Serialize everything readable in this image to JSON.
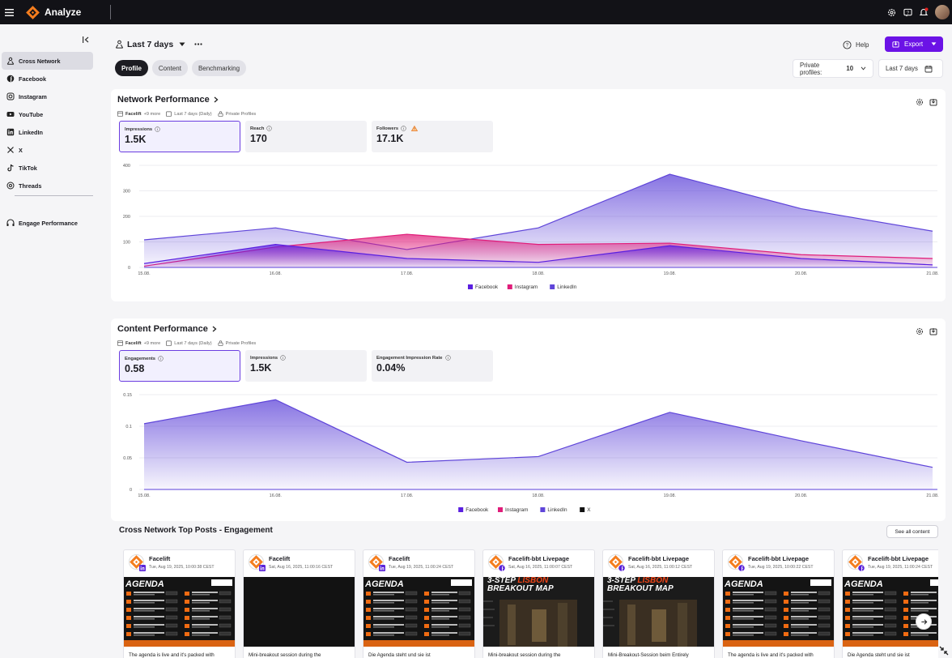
{
  "topbar": {
    "app_title": "Analyze"
  },
  "sidebar": {
    "items": [
      {
        "label": "Cross Network",
        "icon": "network-icon",
        "active": true
      },
      {
        "label": "Facebook",
        "icon": "facebook-icon"
      },
      {
        "label": "Instagram",
        "icon": "instagram-icon"
      },
      {
        "label": "YouTube",
        "icon": "youtube-icon"
      },
      {
        "label": "LinkedIn",
        "icon": "linkedin-icon"
      },
      {
        "label": "X",
        "icon": "x-icon"
      },
      {
        "label": "TikTok",
        "icon": "tiktok-icon"
      },
      {
        "label": "Threads",
        "icon": "threads-icon"
      }
    ],
    "secondary": [
      {
        "label": "Engage Performance",
        "icon": "engage-icon"
      }
    ]
  },
  "header": {
    "period": "Last 7 days",
    "help_label": "Help",
    "export_label": "Export"
  },
  "tabs": [
    {
      "label": "Profile",
      "active": true
    },
    {
      "label": "Content"
    },
    {
      "label": "Benchmarking"
    }
  ],
  "filters": {
    "private_profiles_label": "Private profiles:",
    "private_profiles_count": "10",
    "date_range": "Last 7 days"
  },
  "network_performance": {
    "title": "Network Performance",
    "meta": {
      "profile": "Facelift",
      "more": "+9 more",
      "period": "Last 7 days  (Daily)",
      "privacy": "Private Profiles"
    },
    "kpis": [
      {
        "label": "Impressions",
        "value": "1.5K",
        "active": true
      },
      {
        "label": "Reach",
        "value": "170"
      },
      {
        "label": "Followers",
        "value": "17.1K",
        "warning": true
      }
    ]
  },
  "content_performance": {
    "title": "Content Performance",
    "meta": {
      "profile": "Facelift",
      "more": "+9 more",
      "period": "Last 7 days  (Daily)",
      "privacy": "Private Profiles"
    },
    "kpis": [
      {
        "label": "Engagements",
        "value": "0.58",
        "active": true
      },
      {
        "label": "Impressions",
        "value": "1.5K"
      },
      {
        "label": "Engagement Impression Rate",
        "value": "0.04%"
      }
    ]
  },
  "chart_data": [
    {
      "type": "area",
      "categories": [
        "15.08.",
        "16.08.",
        "17.08.",
        "18.08.",
        "19.08.",
        "20.08.",
        "21.08."
      ],
      "ylim": [
        0,
        400
      ],
      "yticks": [
        0,
        100,
        200,
        300,
        400
      ],
      "series": [
        {
          "name": "Facebook",
          "color": "#5a1fe0",
          "values": [
            15,
            90,
            35,
            20,
            85,
            35,
            10
          ]
        },
        {
          "name": "Instagram",
          "color": "#e01d7a",
          "values": [
            5,
            80,
            130,
            90,
            95,
            50,
            35
          ]
        },
        {
          "name": "LinkedIn",
          "color": "#5f45d9",
          "values": [
            108,
            155,
            70,
            155,
            365,
            230,
            142
          ]
        }
      ]
    },
    {
      "type": "area",
      "categories": [
        "15.08.",
        "16.08.",
        "17.08.",
        "18.08.",
        "19.08.",
        "20.08.",
        "21.08."
      ],
      "ylim": [
        0,
        0.15
      ],
      "yticks": [
        "0",
        "0.05",
        "0.1",
        "0.15"
      ],
      "series": [
        {
          "name": "Facebook",
          "color": "#5a1fe0",
          "values": [
            0,
            0,
            0,
            0,
            0,
            0,
            0
          ]
        },
        {
          "name": "Instagram",
          "color": "#e01d7a",
          "values": [
            0,
            0,
            0,
            0,
            0,
            0,
            0
          ]
        },
        {
          "name": "LinkedIn",
          "color": "#5f45d9",
          "values": [
            0.104,
            0.142,
            0.043,
            0.052,
            0.122,
            0.077,
            0.035
          ]
        },
        {
          "name": "X",
          "color": "#111111",
          "values": [
            0,
            0,
            0,
            0,
            0,
            0,
            0
          ]
        }
      ]
    }
  ],
  "top_posts": {
    "title": "Cross Network Top Posts - Engagement",
    "see_all": "See all content",
    "posts": [
      {
        "name": "Facelift",
        "date": "Tue, Aug 19, 2025, 10:00:38 CEST",
        "network": "linkedin",
        "image": "agenda",
        "text": "The agenda is live and it's packed with"
      },
      {
        "name": "Facelift",
        "date": "Sat, Aug 16, 2025, 11:00:16 CEST",
        "network": "linkedin",
        "image": "black",
        "text": "Mini-breakout session during the"
      },
      {
        "name": "Facelift",
        "date": "Tue, Aug 19, 2025, 11:00:24 CEST",
        "network": "linkedin",
        "image": "agenda",
        "text": "Die Agenda steht und sie ist"
      },
      {
        "name": "Facelift-bbt Livepage",
        "date": "Sat, Aug 16, 2025, 11:00:07 CEST",
        "network": "facebook",
        "image": "lisbon",
        "text": "Mini-breakout session during the"
      },
      {
        "name": "Facelift-bbt Livepage",
        "date": "Sat, Aug 16, 2025, 11:00:12 CEST",
        "network": "facebook",
        "image": "lisbon",
        "text": "Mini-Breakout-Session beim Entirely"
      },
      {
        "name": "Facelift-bbt Livepage",
        "date": "Tue, Aug 19, 2025, 10:00:22 CEST",
        "network": "facebook",
        "image": "agenda",
        "text": "The agenda is live and it's packed with"
      },
      {
        "name": "Facelift-bbt Livepage",
        "date": "Tue, Aug 19, 2025, 11:00:24 CEST",
        "network": "facebook",
        "image": "agenda",
        "text": "Die Agenda steht und sie ist"
      }
    ],
    "image_text": {
      "agenda": "AGENDA",
      "lisbon_a": "3-STEP",
      "lisbon_b": "LISBON",
      "lisbon_c": "BREAKOUT MAP"
    }
  }
}
